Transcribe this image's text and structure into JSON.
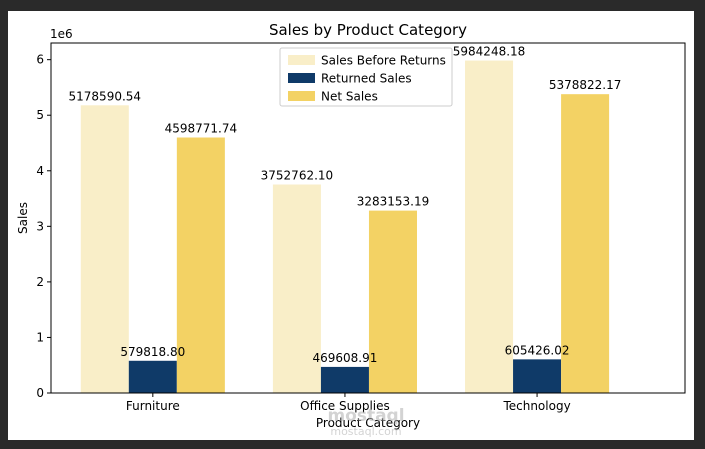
{
  "chart_data": {
    "type": "bar",
    "title": "Sales by Product Category",
    "xlabel": "Product Category",
    "ylabel": "Sales",
    "y_multiplier": "1e6",
    "categories": [
      "Furniture",
      "Office Supplies",
      "Technology"
    ],
    "series": [
      {
        "name": "Sales Before Returns",
        "values": [
          5178590.54,
          3752762.1,
          5984248.18
        ],
        "labels": [
          "5178590.54",
          "3752762.10",
          "5984248.18"
        ],
        "color": "#f9eec8"
      },
      {
        "name": "Returned Sales",
        "values": [
          579818.8,
          469608.91,
          605426.02
        ],
        "labels": [
          "579818.80",
          "469608.91",
          "605426.02"
        ],
        "color": "#0f3a68"
      },
      {
        "name": "Net Sales",
        "values": [
          4598771.74,
          3283153.19,
          5378822.17
        ],
        "labels": [
          "4598771.74",
          "3283153.19",
          "5378822.17"
        ],
        "color": "#f3d264"
      }
    ],
    "ylim": [
      0,
      6300000
    ],
    "yticks": [
      0,
      1000000,
      2000000,
      3000000,
      4000000,
      5000000,
      6000000
    ],
    "ytick_labels": [
      "0",
      "1",
      "2",
      "3",
      "4",
      "5",
      "6"
    ],
    "grid": false,
    "legend_position": "top-center"
  },
  "watermark": {
    "text": "mostaql",
    "subtext": "mostaql.com"
  }
}
